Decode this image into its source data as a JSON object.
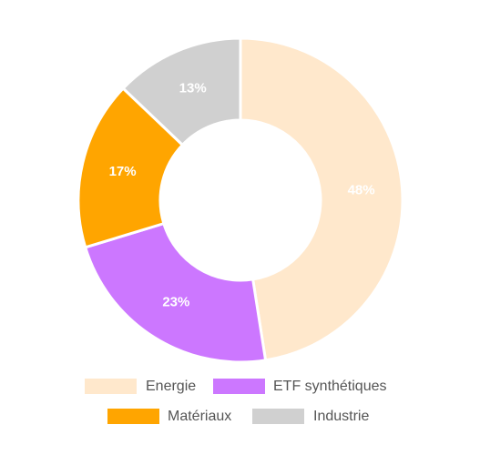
{
  "chart_data": {
    "type": "donut",
    "categories": [
      "Energie",
      "ETF synthétiques",
      "Matériaux",
      "Industrie"
    ],
    "values": [
      48,
      23,
      17,
      13
    ],
    "value_labels": [
      "48%",
      "23%",
      "17%",
      "13%"
    ],
    "colors": [
      "#ffe8cc",
      "#cc77ff",
      "#ffa500",
      "#d0d0d0"
    ]
  }
}
